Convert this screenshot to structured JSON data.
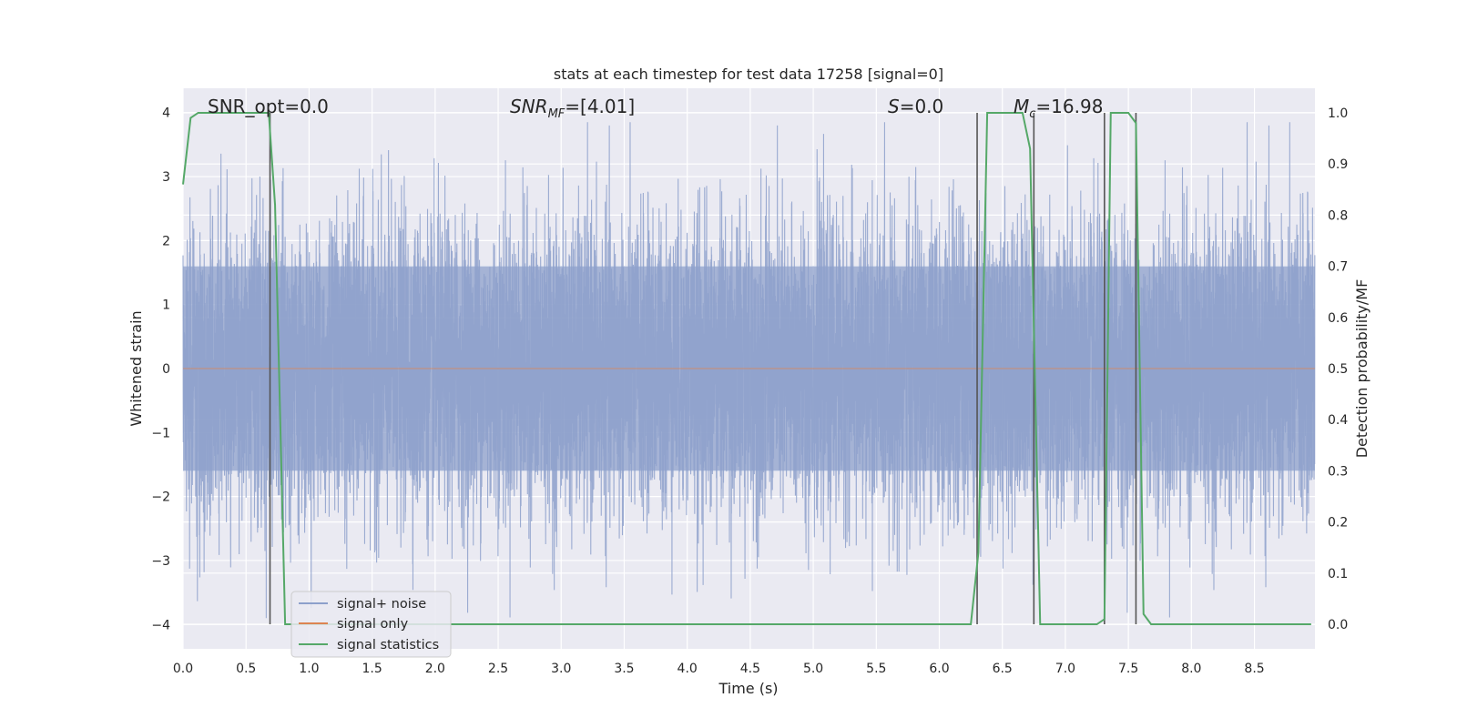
{
  "chart_data": {
    "type": "line",
    "title": "stats at each timestep for test data 17258 [signal=0]",
    "xlabel": "Time (s)",
    "ylabel_left": "Whitened strain",
    "ylabel_right": "Detection probability/MF",
    "xlim": [
      0.0,
      8.98
    ],
    "ylim_left": [
      -4.38,
      4.38
    ],
    "ylim_right": [
      -0.048,
      1.048
    ],
    "x_ticks": [
      "0.0",
      "0.5",
      "1.0",
      "1.5",
      "2.0",
      "2.5",
      "3.0",
      "3.5",
      "4.0",
      "4.5",
      "5.0",
      "5.5",
      "6.0",
      "6.5",
      "7.0",
      "7.5",
      "8.0",
      "8.5"
    ],
    "y_left_ticks": [
      "−4",
      "−3",
      "−2",
      "−1",
      "0",
      "1",
      "2",
      "3",
      "4"
    ],
    "y_right_ticks": [
      "0.0",
      "0.1",
      "0.2",
      "0.3",
      "0.4",
      "0.5",
      "0.6",
      "0.7",
      "0.8",
      "0.9",
      "1.0"
    ],
    "grid": true,
    "legend_position": "lower-left",
    "legend": [
      "signal+ noise",
      "signal only",
      "signal statistics"
    ],
    "annotations": {
      "snr_opt": "SNR_opt=0.0",
      "snr_mf_main": "SNR",
      "snr_mf_sub": "MF",
      "snr_mf_rest": "=[4.01]",
      "s_main": "S",
      "s_rest": "=0.0",
      "mc_main": "M",
      "mc_sub": "c",
      "mc_rest": "=16.98"
    },
    "series": [
      {
        "name": "signal+ noise",
        "axis": "left",
        "color": "#8da0cb",
        "description_type": "noise",
        "sample_rate_hz": 1000,
        "noise_band_sigma": 1.6,
        "approx_range": [
          -3.9,
          3.85
        ]
      },
      {
        "name": "signal only",
        "axis": "left",
        "color": "#dd8452",
        "x": [
          0.0,
          8.98
        ],
        "y": [
          0.0,
          0.0
        ]
      },
      {
        "name": "signal statistics",
        "axis": "right",
        "color": "#55a868",
        "x": [
          0.0,
          0.06,
          0.12,
          0.5,
          0.68,
          0.73,
          0.81,
          1.0,
          2.0,
          3.0,
          4.0,
          5.0,
          6.0,
          6.25,
          6.31,
          6.38,
          6.66,
          6.72,
          6.8,
          7.25,
          7.31,
          7.36,
          7.5,
          7.56,
          7.62,
          7.68,
          8.0,
          8.5,
          8.95
        ],
        "y": [
          0.86,
          0.99,
          1.0,
          1.0,
          1.0,
          0.82,
          0.0,
          0.0,
          0.0,
          0.0,
          0.0,
          0.0,
          0.0,
          0.0,
          0.14,
          1.0,
          1.0,
          0.93,
          0.0,
          0.0,
          0.01,
          1.0,
          1.0,
          0.98,
          0.02,
          0.0,
          0.0,
          0.0,
          0.0
        ]
      }
    ],
    "vertical_lines_x": [
      0.69,
      6.3,
      6.75,
      7.31,
      7.56
    ]
  }
}
